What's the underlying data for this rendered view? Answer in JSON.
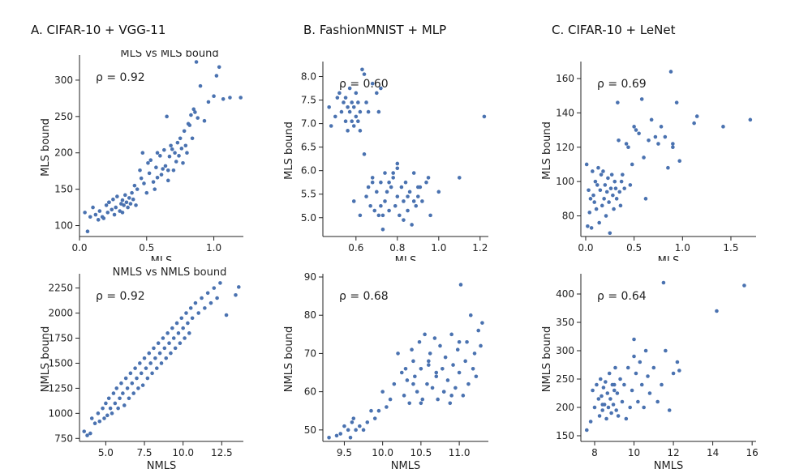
{
  "column_titles": [
    "A. CIFAR-10 + VGG-11",
    "B. FashionMNIST + MLP",
    "C. CIFAR-10 + LeNet"
  ],
  "colors": {
    "point": "#4a72b0",
    "axis": "#222222"
  },
  "chart_data": [
    {
      "type": "scatter",
      "title": "MLS vs MLS bound",
      "annotation": "ρ = 0.92",
      "xlabel": "MLS",
      "ylabel": "MLS bound",
      "xlim": [
        0.0,
        1.22
      ],
      "ylim": [
        85,
        330
      ],
      "xticks": [
        0.0,
        0.5,
        1.0
      ],
      "xtick_labels": [
        "0.0",
        "0.5",
        "1.0"
      ],
      "yticks": [
        100,
        150,
        200,
        250,
        300
      ],
      "ytick_labels": [
        "100",
        "150",
        "200",
        "250",
        "300"
      ],
      "x": [
        0.04,
        0.06,
        0.08,
        0.1,
        0.12,
        0.14,
        0.15,
        0.17,
        0.18,
        0.2,
        0.21,
        0.22,
        0.24,
        0.25,
        0.26,
        0.27,
        0.28,
        0.3,
        0.31,
        0.32,
        0.33,
        0.34,
        0.35,
        0.36,
        0.37,
        0.38,
        0.39,
        0.4,
        0.41,
        0.42,
        0.43,
        0.45,
        0.46,
        0.48,
        0.5,
        0.51,
        0.52,
        0.53,
        0.55,
        0.56,
        0.57,
        0.58,
        0.6,
        0.61,
        0.62,
        0.63,
        0.64,
        0.65,
        0.66,
        0.67,
        0.68,
        0.69,
        0.7,
        0.71,
        0.72,
        0.73,
        0.74,
        0.75,
        0.76,
        0.77,
        0.78,
        0.79,
        0.8,
        0.81,
        0.82,
        0.83,
        0.84,
        0.85,
        0.86,
        0.87,
        0.88,
        0.9,
        0.93,
        0.96,
        1.0,
        1.02,
        1.04,
        1.07,
        1.12,
        1.2,
        0.32,
        0.22,
        0.47,
        0.58,
        0.66
      ],
      "y": [
        118,
        92,
        112,
        125,
        115,
        108,
        120,
        112,
        110,
        128,
        118,
        132,
        122,
        136,
        115,
        125,
        140,
        120,
        130,
        135,
        128,
        142,
        132,
        125,
        138,
        130,
        145,
        136,
        155,
        128,
        150,
        176,
        165,
        158,
        145,
        186,
        172,
        190,
        160,
        150,
        180,
        200,
        196,
        170,
        178,
        204,
        182,
        250,
        162,
        195,
        210,
        205,
        176,
        200,
        188,
        214,
        196,
        220,
        206,
        186,
        230,
        210,
        200,
        240,
        238,
        252,
        220,
        260,
        256,
        325,
        248,
        292,
        244,
        270,
        278,
        306,
        318,
        274,
        276,
        276,
        118,
        132,
        200,
        166,
        176
      ]
    },
    {
      "type": "scatter",
      "title": "",
      "annotation": "ρ = 0.60",
      "xlabel": "MLS",
      "ylabel": "MLS bound",
      "xlim": [
        0.44,
        1.24
      ],
      "ylim": [
        4.6,
        8.25
      ],
      "xticks": [
        0.6,
        0.8,
        1.0,
        1.2
      ],
      "xtick_labels": [
        "0.6",
        "0.8",
        "1.0",
        "1.2"
      ],
      "yticks": [
        5.0,
        5.5,
        6.0,
        6.5,
        7.0,
        7.5,
        8.0
      ],
      "ytick_labels": [
        "5.0",
        "5.5",
        "6.0",
        "6.5",
        "7.0",
        "7.5",
        "8.0"
      ],
      "x": [
        0.47,
        0.48,
        0.5,
        0.51,
        0.52,
        0.53,
        0.54,
        0.55,
        0.55,
        0.56,
        0.56,
        0.57,
        0.57,
        0.58,
        0.58,
        0.59,
        0.59,
        0.6,
        0.6,
        0.61,
        0.61,
        0.62,
        0.62,
        0.63,
        0.64,
        0.65,
        0.66,
        0.68,
        0.7,
        0.71,
        0.72,
        0.59,
        0.62,
        0.64,
        0.65,
        0.66,
        0.67,
        0.68,
        0.69,
        0.7,
        0.71,
        0.72,
        0.73,
        0.74,
        0.74,
        0.75,
        0.76,
        0.77,
        0.78,
        0.79,
        0.8,
        0.8,
        0.81,
        0.82,
        0.83,
        0.84,
        0.85,
        0.86,
        0.87,
        0.88,
        0.89,
        0.9,
        0.91,
        0.92,
        0.94,
        0.95,
        0.96,
        1.0,
        1.1,
        1.22,
        0.68,
        0.73,
        0.78,
        0.83,
        0.88,
        0.72,
        0.76,
        0.8,
        0.85,
        0.9
      ],
      "y": [
        7.35,
        6.95,
        7.15,
        7.55,
        7.65,
        7.25,
        7.45,
        7.05,
        7.55,
        7.35,
        6.85,
        7.25,
        7.75,
        7.05,
        7.45,
        6.95,
        7.35,
        7.15,
        7.65,
        7.05,
        7.45,
        7.25,
        6.85,
        8.15,
        8.05,
        7.45,
        7.25,
        7.85,
        7.65,
        7.25,
        7.75,
        5.35,
        5.05,
        6.35,
        5.45,
        5.65,
        5.25,
        5.85,
        5.15,
        5.55,
        5.05,
        5.75,
        4.75,
        5.35,
        5.95,
        5.55,
        5.15,
        5.65,
        5.85,
        5.25,
        5.45,
        6.15,
        5.05,
        5.65,
        5.35,
        5.75,
        5.15,
        5.55,
        4.85,
        5.95,
        5.25,
        5.45,
        5.65,
        5.35,
        5.75,
        5.85,
        5.05,
        5.55,
        5.85,
        7.15,
        5.75,
        5.05,
        5.95,
        4.95,
        5.35,
        5.25,
        5.75,
        6.05,
        5.45,
        5.65
      ]
    },
    {
      "type": "scatter",
      "title": "",
      "annotation": "ρ = 0.69",
      "xlabel": "MLS",
      "ylabel": "MLS bound",
      "xlim": [
        -0.05,
        1.76
      ],
      "ylim": [
        68,
        168
      ],
      "xticks": [
        0.0,
        0.5,
        1.0,
        1.5
      ],
      "xtick_labels": [
        "0.0",
        "0.5",
        "1.0",
        "1.5"
      ],
      "yticks": [
        80,
        100,
        120,
        140,
        160
      ],
      "ytick_labels": [
        "80",
        "100",
        "120",
        "140",
        "160"
      ],
      "x": [
        0.01,
        0.02,
        0.03,
        0.04,
        0.05,
        0.06,
        0.07,
        0.08,
        0.09,
        0.1,
        0.11,
        0.12,
        0.13,
        0.14,
        0.15,
        0.16,
        0.17,
        0.18,
        0.19,
        0.2,
        0.21,
        0.22,
        0.23,
        0.24,
        0.25,
        0.26,
        0.27,
        0.28,
        0.29,
        0.3,
        0.31,
        0.32,
        0.33,
        0.34,
        0.35,
        0.36,
        0.37,
        0.38,
        0.4,
        0.42,
        0.44,
        0.46,
        0.48,
        0.5,
        0.52,
        0.55,
        0.58,
        0.62,
        0.65,
        0.68,
        0.72,
        0.75,
        0.78,
        0.82,
        0.85,
        0.88,
        0.9,
        0.94,
        0.97,
        1.12,
        1.15,
        1.42,
        1.7,
        0.9,
        0.6
      ],
      "y": [
        110,
        74,
        95,
        82,
        90,
        73,
        106,
        92,
        88,
        100,
        84,
        98,
        108,
        76,
        95,
        104,
        86,
        106,
        90,
        98,
        80,
        94,
        102,
        88,
        70,
        96,
        104,
        92,
        84,
        100,
        96,
        90,
        146,
        124,
        94,
        86,
        100,
        104,
        96,
        122,
        120,
        98,
        110,
        132,
        130,
        128,
        148,
        90,
        124,
        136,
        126,
        122,
        132,
        126,
        108,
        164,
        122,
        146,
        112,
        134,
        138,
        132,
        136,
        120,
        114
      ]
    },
    {
      "type": "scatter",
      "title": "NMLS vs NMLS bound",
      "annotation": "ρ = 0.92",
      "xlabel": "NMLS",
      "ylabel": "NMLS bound",
      "xlim": [
        3.3,
        13.9
      ],
      "ylim": [
        720,
        2360
      ],
      "xticks": [
        5.0,
        7.5,
        10.0,
        12.5
      ],
      "xtick_labels": [
        "5.0",
        "7.5",
        "10.0",
        "12.5"
      ],
      "yticks": [
        750,
        1000,
        1250,
        1500,
        1750,
        2000,
        2250
      ],
      "ytick_labels": [
        "750",
        "1000",
        "1250",
        "1500",
        "1750",
        "2000",
        "2250"
      ],
      "x": [
        3.6,
        3.8,
        4.0,
        4.1,
        4.3,
        4.5,
        4.6,
        4.8,
        4.9,
        5.0,
        5.1,
        5.2,
        5.3,
        5.4,
        5.5,
        5.6,
        5.7,
        5.8,
        5.9,
        6.0,
        6.1,
        6.2,
        6.3,
        6.4,
        6.5,
        6.6,
        6.7,
        6.8,
        6.9,
        7.0,
        7.1,
        7.2,
        7.3,
        7.4,
        7.5,
        7.6,
        7.7,
        7.8,
        7.9,
        8.0,
        8.1,
        8.2,
        8.3,
        8.4,
        8.5,
        8.6,
        8.7,
        8.8,
        8.9,
        9.0,
        9.1,
        9.2,
        9.3,
        9.4,
        9.5,
        9.6,
        9.7,
        9.8,
        9.9,
        10.0,
        10.1,
        10.2,
        10.3,
        10.4,
        10.5,
        10.6,
        10.8,
        11.0,
        11.2,
        11.4,
        11.6,
        11.8,
        12.0,
        12.2,
        12.4,
        12.8,
        13.4,
        13.6
      ],
      "y": [
        820,
        780,
        800,
        950,
        900,
        1000,
        920,
        1050,
        950,
        1100,
        980,
        1150,
        1050,
        1000,
        1200,
        1100,
        1250,
        1050,
        1150,
        1300,
        1200,
        1080,
        1350,
        1250,
        1150,
        1400,
        1300,
        1200,
        1450,
        1350,
        1250,
        1500,
        1400,
        1280,
        1550,
        1450,
        1350,
        1600,
        1500,
        1400,
        1650,
        1550,
        1450,
        1700,
        1600,
        1500,
        1750,
        1650,
        1550,
        1800,
        1700,
        1600,
        1850,
        1750,
        1650,
        1900,
        1800,
        1700,
        1950,
        1850,
        1750,
        2000,
        1900,
        1800,
        2050,
        1950,
        2100,
        2000,
        2150,
        2050,
        2200,
        2100,
        2250,
        2150,
        2300,
        1980,
        2180,
        2260
      ]
    },
    {
      "type": "scatter",
      "title": "",
      "annotation": "ρ = 0.68",
      "xlabel": "NMLS",
      "ylabel": "NMLS bound",
      "xlim": [
        9.22,
        11.38
      ],
      "ylim": [
        47,
        90
      ],
      "xticks": [
        9.5,
        10.0,
        10.5,
        11.0
      ],
      "xtick_labels": [
        "9.5",
        "10.0",
        "10.5",
        "11.0"
      ],
      "yticks": [
        50,
        60,
        70,
        80,
        90
      ],
      "ytick_labels": [
        "50",
        "60",
        "70",
        "80",
        "90"
      ],
      "x": [
        9.3,
        9.4,
        9.45,
        9.5,
        9.55,
        9.58,
        9.6,
        9.62,
        9.65,
        9.7,
        9.75,
        9.8,
        9.85,
        9.9,
        9.95,
        10.0,
        10.05,
        10.1,
        10.15,
        10.2,
        10.25,
        10.28,
        10.3,
        10.32,
        10.35,
        10.38,
        10.4,
        10.42,
        10.45,
        10.48,
        10.5,
        10.52,
        10.55,
        10.58,
        10.6,
        10.62,
        10.65,
        10.68,
        10.7,
        10.72,
        10.75,
        10.78,
        10.8,
        10.82,
        10.85,
        10.88,
        10.9,
        10.92,
        10.95,
        10.98,
        11.0,
        11.02,
        11.05,
        11.08,
        11.1,
        11.12,
        11.15,
        11.18,
        11.2,
        11.22,
        11.25,
        11.28,
        11.3,
        10.4,
        10.6,
        10.8,
        11.0,
        10.5,
        10.7,
        10.9
      ],
      "y": [
        48,
        48.5,
        49,
        51,
        50,
        48,
        52,
        53,
        50,
        51,
        50,
        52,
        55,
        53,
        55,
        60,
        56,
        58,
        62,
        70,
        65,
        59,
        66,
        63,
        57,
        71,
        68,
        64,
        60,
        73,
        66,
        58,
        75,
        62,
        67,
        70,
        61,
        74,
        64,
        58,
        72,
        66,
        60,
        69,
        63,
        57,
        75,
        67,
        61,
        71,
        65,
        88,
        59,
        68,
        73,
        62,
        80,
        66,
        70,
        64,
        76,
        72,
        78,
        62,
        68,
        60,
        73,
        57,
        65,
        59
      ]
    },
    {
      "type": "scatter",
      "title": "",
      "annotation": "ρ = 0.64",
      "xlabel": "NMLS",
      "ylabel": "NMLS bound",
      "xlim": [
        7.3,
        16.2
      ],
      "ylim": [
        140,
        430
      ],
      "xticks": [
        8,
        10,
        12,
        14,
        16
      ],
      "xtick_labels": [
        "8",
        "10",
        "12",
        "14",
        "16"
      ],
      "yticks": [
        150,
        200,
        250,
        300,
        350,
        400
      ],
      "ytick_labels": [
        "150",
        "200",
        "250",
        "300",
        "350",
        "400"
      ],
      "x": [
        7.6,
        7.8,
        7.9,
        8.0,
        8.1,
        8.2,
        8.25,
        8.3,
        8.35,
        8.4,
        8.45,
        8.5,
        8.55,
        8.6,
        8.65,
        8.7,
        8.75,
        8.8,
        8.85,
        8.9,
        8.95,
        9.0,
        9.05,
        9.1,
        9.15,
        9.2,
        9.3,
        9.4,
        9.5,
        9.6,
        9.7,
        9.8,
        9.9,
        10.0,
        10.1,
        10.2,
        10.3,
        10.4,
        10.5,
        10.6,
        10.7,
        10.8,
        11.0,
        11.2,
        11.4,
        11.6,
        11.8,
        12.0,
        12.2,
        12.3,
        11.5,
        14.2,
        15.6,
        8.4,
        9.0,
        10.0
      ],
      "y": [
        160,
        175,
        230,
        200,
        240,
        215,
        185,
        250,
        220,
        195,
        235,
        205,
        245,
        180,
        225,
        200,
        260,
        215,
        190,
        240,
        205,
        230,
        270,
        195,
        225,
        185,
        250,
        210,
        240,
        180,
        270,
        200,
        230,
        320,
        260,
        210,
        280,
        240,
        200,
        300,
        255,
        225,
        270,
        210,
        240,
        300,
        195,
        260,
        280,
        265,
        420,
        370,
        415,
        205,
        240,
        290
      ]
    }
  ]
}
